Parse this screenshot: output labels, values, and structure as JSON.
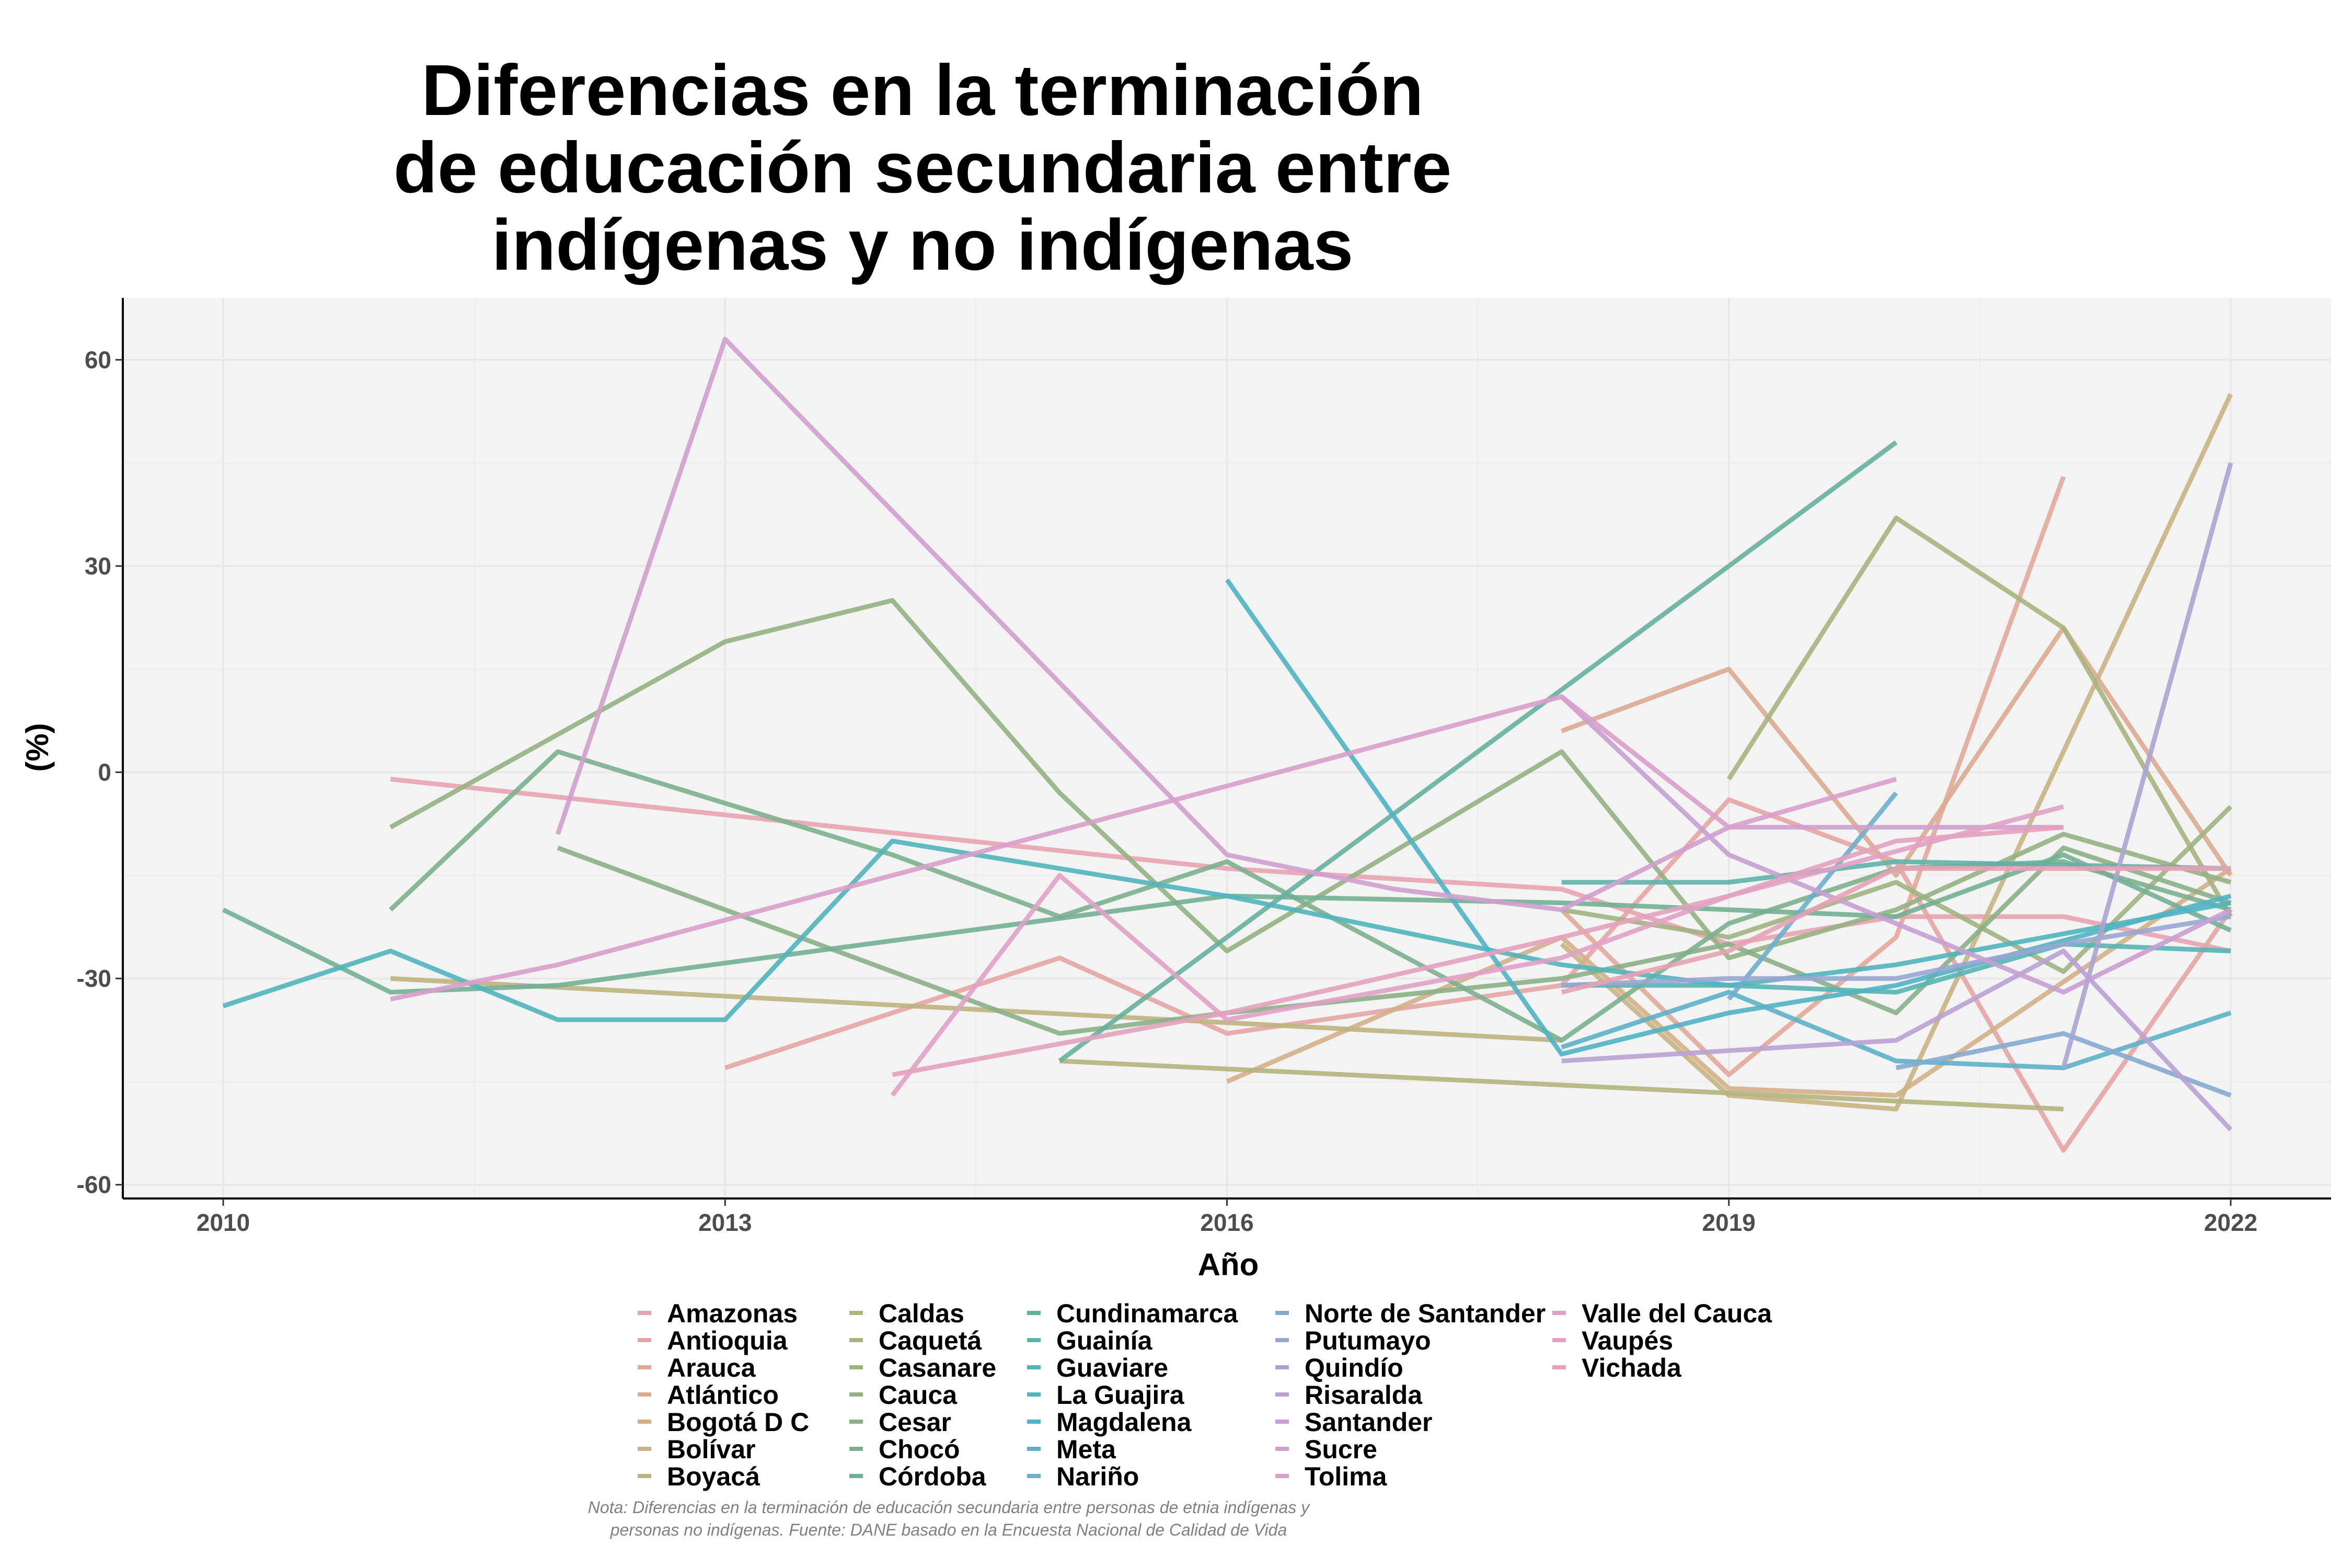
{
  "chart_data": {
    "type": "line",
    "title": [
      "Diferencias en la terminación",
      "de educación secundaria entre",
      "indígenas y no indígenas"
    ],
    "xlabel": "Año",
    "ylabel": "(%)",
    "xlim": [
      2009.4,
      2022.6
    ],
    "ylim": [
      -62,
      69
    ],
    "x_ticks": [
      2010,
      2013,
      2016,
      2019,
      2022
    ],
    "y_ticks": [
      -60,
      -30,
      0,
      30,
      60
    ],
    "y_tick_labels": [
      "-60",
      "-30",
      "0",
      "30",
      "60"
    ],
    "grid": true,
    "legend_position": "bottom",
    "note": [
      "Nota: Diferencias en la terminación de educación secundaria entre personas de etnia indígenas y",
      "personas no indígenas. Fuente: DANE basado en la Encuesta Nacional de Calidad de Vida"
    ],
    "series": [
      {
        "name": "Amazonas",
        "color": "#e7a3b0",
        "points": [
          [
            2011,
            -1
          ],
          [
            2016,
            -14
          ],
          [
            2018,
            -17
          ],
          [
            2019,
            -25
          ],
          [
            2020,
            -21
          ],
          [
            2021,
            -21
          ],
          [
            2022,
            -26
          ]
        ]
      },
      {
        "name": "Antioquia",
        "color": "#e5a5a5",
        "points": [
          [
            2013,
            -43
          ],
          [
            2015,
            -27
          ],
          [
            2016,
            -38
          ],
          [
            2018,
            -31
          ],
          [
            2019,
            -4
          ],
          [
            2020,
            -13
          ],
          [
            2021,
            -55
          ],
          [
            2022,
            -20
          ]
        ]
      },
      {
        "name": "Arauca",
        "color": "#e2a89a",
        "points": [
          [
            2018,
            -20
          ],
          [
            2019,
            -44
          ],
          [
            2020,
            -24
          ],
          [
            2021,
            43
          ]
        ]
      },
      {
        "name": "Atlántico",
        "color": "#dcab90",
        "points": [
          [
            2018,
            6
          ],
          [
            2019,
            15
          ],
          [
            2020,
            -15
          ],
          [
            2021,
            21
          ],
          [
            2022,
            -15
          ]
        ]
      },
      {
        "name": "Bogotá D C",
        "color": "#d3af88",
        "points": [
          [
            2016,
            -45
          ],
          [
            2018,
            -24
          ],
          [
            2019,
            -46
          ],
          [
            2020,
            -47
          ],
          [
            2022,
            -14
          ]
        ]
      },
      {
        "name": "Bolívar",
        "color": "#c9b283",
        "points": [
          [
            2018,
            -25
          ],
          [
            2019,
            -47
          ],
          [
            2020,
            -49
          ],
          [
            2022,
            55
          ]
        ]
      },
      {
        "name": "Boyacá",
        "color": "#bcb47f",
        "points": [
          [
            2011,
            -30
          ],
          [
            2018,
            -39
          ]
        ]
      },
      {
        "name": "Caldas",
        "color": "#b2b47d",
        "points": [
          [
            2015,
            -42
          ],
          [
            2021,
            -49
          ]
        ]
      },
      {
        "name": "Caquetá",
        "color": "#a9b37e",
        "points": [
          [
            2019,
            -1
          ],
          [
            2020,
            37
          ],
          [
            2021,
            21
          ],
          [
            2022,
            -21
          ]
        ]
      },
      {
        "name": "Casanare",
        "color": "#a0b27f",
        "points": [
          [
            2018,
            -20
          ],
          [
            2019,
            -24
          ],
          [
            2020,
            -16
          ],
          [
            2021,
            -29
          ],
          [
            2022,
            -5
          ]
        ]
      },
      {
        "name": "Cauca",
        "color": "#94b182",
        "points": [
          [
            2011,
            -8
          ],
          [
            2013,
            19
          ],
          [
            2014,
            25
          ],
          [
            2015,
            -3
          ],
          [
            2016,
            -26
          ],
          [
            2018,
            3
          ],
          [
            2019,
            -27
          ],
          [
            2020,
            -20
          ],
          [
            2021,
            -9
          ],
          [
            2022,
            -16
          ]
        ]
      },
      {
        "name": "Cesar",
        "color": "#89b087",
        "points": [
          [
            2012,
            -11
          ],
          [
            2015,
            -38
          ],
          [
            2016,
            -35
          ],
          [
            2018,
            -30
          ],
          [
            2019,
            -25
          ],
          [
            2020,
            -35
          ],
          [
            2021,
            -11
          ],
          [
            2022,
            -19
          ]
        ]
      },
      {
        "name": "Chocó",
        "color": "#7cb08d",
        "points": [
          [
            2011,
            -20
          ],
          [
            2012,
            3
          ],
          [
            2014,
            -12
          ],
          [
            2015,
            -21
          ],
          [
            2016,
            -13
          ],
          [
            2018,
            -39
          ],
          [
            2019,
            -22
          ],
          [
            2020,
            -14
          ],
          [
            2021,
            -13
          ],
          [
            2022,
            -20
          ]
        ]
      },
      {
        "name": "Córdoba",
        "color": "#71af95",
        "points": [
          [
            2010,
            -20
          ],
          [
            2011,
            -32
          ],
          [
            2012,
            -31
          ],
          [
            2016,
            -18
          ],
          [
            2018,
            -19
          ],
          [
            2020,
            -21
          ],
          [
            2021,
            -12
          ],
          [
            2022,
            -23
          ]
        ]
      },
      {
        "name": "Cundinamarca",
        "color": "#67b09e",
        "points": [
          [
            2015,
            -42
          ],
          [
            2020,
            48
          ]
        ]
      },
      {
        "name": "Guainía",
        "color": "#5db3a9",
        "points": [
          [
            2018,
            -16
          ],
          [
            2019,
            -16
          ],
          [
            2020,
            -13
          ],
          [
            2022,
            -14
          ]
        ]
      },
      {
        "name": "Guaviare",
        "color": "#56b4b4",
        "points": [
          [
            2018,
            -31
          ],
          [
            2019,
            -31
          ],
          [
            2020,
            -32
          ],
          [
            2021,
            -25
          ],
          [
            2022,
            -26
          ]
        ]
      },
      {
        "name": "La Guajira",
        "color": "#50b4bd",
        "points": [
          [
            2010,
            -34
          ],
          [
            2011,
            -26
          ],
          [
            2012,
            -36
          ],
          [
            2013,
            -36
          ],
          [
            2014,
            -10
          ],
          [
            2016,
            -18
          ],
          [
            2018,
            -28
          ],
          [
            2019,
            -31
          ],
          [
            2020,
            -28
          ],
          [
            2022,
            -19
          ]
        ]
      },
      {
        "name": "Magdalena",
        "color": "#50b3c4",
        "points": [
          [
            2016,
            28
          ],
          [
            2018,
            -41
          ],
          [
            2019,
            -35
          ],
          [
            2020,
            -31
          ],
          [
            2022,
            -18
          ]
        ]
      },
      {
        "name": "Meta",
        "color": "#5cb1c9",
        "points": [
          [
            2018,
            -40
          ],
          [
            2019,
            -32
          ],
          [
            2020,
            -42
          ],
          [
            2021,
            -43
          ],
          [
            2022,
            -35
          ]
        ]
      },
      {
        "name": "Nariño",
        "color": "#6eaecc",
        "points": [
          [
            2019,
            -33
          ],
          [
            2020,
            -3
          ]
        ]
      },
      {
        "name": "Norte de Santander",
        "color": "#84aacf",
        "points": [
          [
            2020,
            -43
          ],
          [
            2021,
            -38
          ],
          [
            2022,
            -47
          ]
        ]
      },
      {
        "name": "Putumayo",
        "color": "#98a6d1",
        "points": [
          [
            2018,
            -31
          ],
          [
            2019,
            -30
          ],
          [
            2020,
            -30
          ],
          [
            2021,
            -25
          ],
          [
            2022,
            -21
          ]
        ]
      },
      {
        "name": "Quindío",
        "color": "#aaa3d3",
        "points": [
          [
            2021,
            -43
          ],
          [
            2022,
            45
          ]
        ]
      },
      {
        "name": "Risaralda",
        "color": "#b9a1d4",
        "points": [
          [
            2018,
            -42
          ],
          [
            2020,
            -39
          ],
          [
            2021,
            -26
          ],
          [
            2022,
            -52
          ]
        ]
      },
      {
        "name": "Santander",
        "color": "#c69fd3",
        "points": [
          [
            2018,
            11
          ],
          [
            2019,
            -12
          ],
          [
            2020,
            -22
          ],
          [
            2021,
            -32
          ],
          [
            2022,
            -20
          ]
        ]
      },
      {
        "name": "Sucre",
        "color": "#d09ecf",
        "points": [
          [
            2012,
            -9
          ],
          [
            2013,
            63
          ],
          [
            2016,
            -12
          ],
          [
            2017,
            -17
          ],
          [
            2018,
            -20
          ],
          [
            2019,
            -8
          ],
          [
            2021,
            -8
          ]
        ]
      },
      {
        "name": "Tolima",
        "color": "#d99fcb",
        "points": [
          [
            2011,
            -33
          ],
          [
            2012,
            -28
          ],
          [
            2016,
            -2
          ],
          [
            2018,
            11
          ],
          [
            2019,
            -8
          ],
          [
            2020,
            -1
          ]
        ]
      },
      {
        "name": "Valle del Cauca",
        "color": "#e0a1c5",
        "points": [
          [
            2014,
            -47
          ],
          [
            2015,
            -15
          ],
          [
            2016,
            -36
          ],
          [
            2018,
            -27
          ],
          [
            2019,
            -18
          ],
          [
            2021,
            -5
          ]
        ]
      },
      {
        "name": "Vaupés",
        "color": "#e4a1bd",
        "points": [
          [
            2014,
            -44
          ],
          [
            2016,
            -35
          ],
          [
            2018,
            -24
          ],
          [
            2019,
            -18
          ],
          [
            2020,
            -10
          ],
          [
            2021,
            -8
          ]
        ]
      },
      {
        "name": "Vichada",
        "color": "#e6a2b5",
        "points": [
          [
            2018,
            -32
          ],
          [
            2019,
            -26
          ],
          [
            2020,
            -14
          ],
          [
            2021,
            -14
          ],
          [
            2022,
            -14
          ]
        ]
      }
    ]
  }
}
